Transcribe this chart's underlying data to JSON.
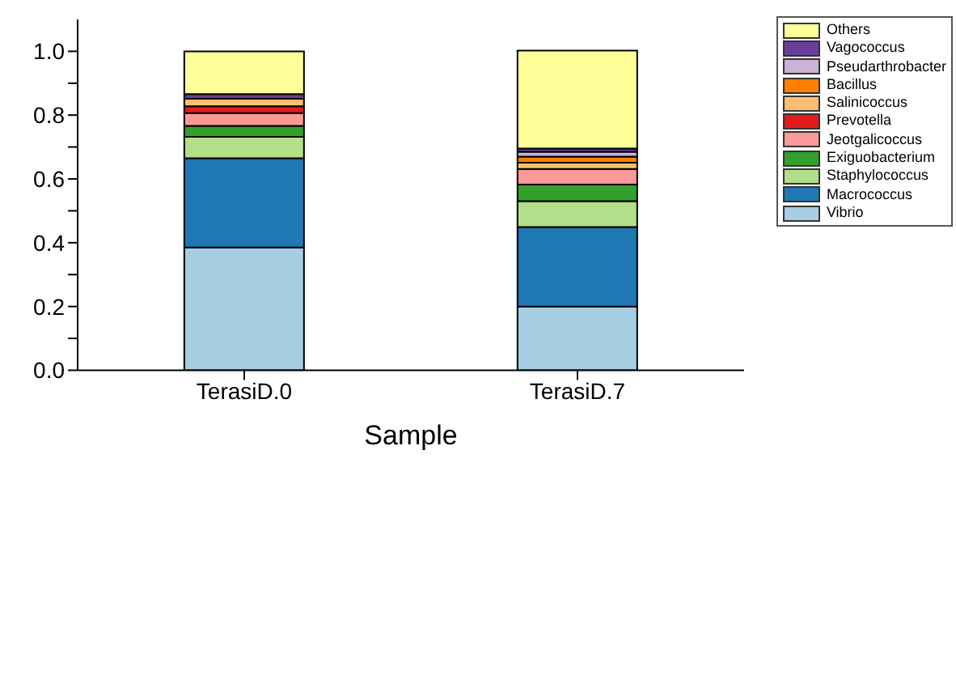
{
  "chart_data": {
    "type": "bar",
    "stacked": true,
    "xlabel": "Sample",
    "categories": [
      "TerasiD.0",
      "TerasiD.7"
    ],
    "series": [
      {
        "name": "Vibrio",
        "color": "#a6cee3",
        "values": [
          0.385,
          0.2
        ]
      },
      {
        "name": "Macrococcus",
        "color": "#1f78b4",
        "values": [
          0.28,
          0.249
        ]
      },
      {
        "name": "Staphylococcus",
        "color": "#b2df8a",
        "values": [
          0.067,
          0.081
        ]
      },
      {
        "name": "Exiguobacterium",
        "color": "#33a02c",
        "values": [
          0.034,
          0.052
        ]
      },
      {
        "name": "Jeotgalicoccus",
        "color": "#fb9a99",
        "values": [
          0.04,
          0.049
        ]
      },
      {
        "name": "Prevotella",
        "color": "#e31a1c",
        "values": [
          0.022,
          0
        ]
      },
      {
        "name": "Salinicoccus",
        "color": "#fdbf6f",
        "values": [
          0.023,
          0.02
        ]
      },
      {
        "name": "Bacillus",
        "color": "#ff7f00",
        "values": [
          0,
          0.019
        ]
      },
      {
        "name": "Pseudarthrobacter",
        "color": "#cab2d6",
        "values": [
          0,
          0.015
        ]
      },
      {
        "name": "Vagococcus",
        "color": "#6a3d9a",
        "values": [
          0.015,
          0.01
        ]
      },
      {
        "name": "Others",
        "color": "#ffff99",
        "values": [
          0.134,
          0.307
        ]
      }
    ],
    "ylim": [
      0,
      1.1
    ],
    "yticks": [
      {
        "value": 0,
        "label": "0.0"
      },
      {
        "value": 0.1,
        "label": null
      },
      {
        "value": 0.2,
        "label": "0.2"
      },
      {
        "value": 0.3,
        "label": null
      },
      {
        "value": 0.4,
        "label": "0.4"
      },
      {
        "value": 0.5,
        "label": null
      },
      {
        "value": 0.6,
        "label": "0.6"
      },
      {
        "value": 0.7,
        "label": null
      },
      {
        "value": 0.8,
        "label": "0.8"
      },
      {
        "value": 0.9,
        "label": null
      },
      {
        "value": 1,
        "label": "1.0"
      }
    ],
    "grid": false,
    "legend": "top right"
  }
}
